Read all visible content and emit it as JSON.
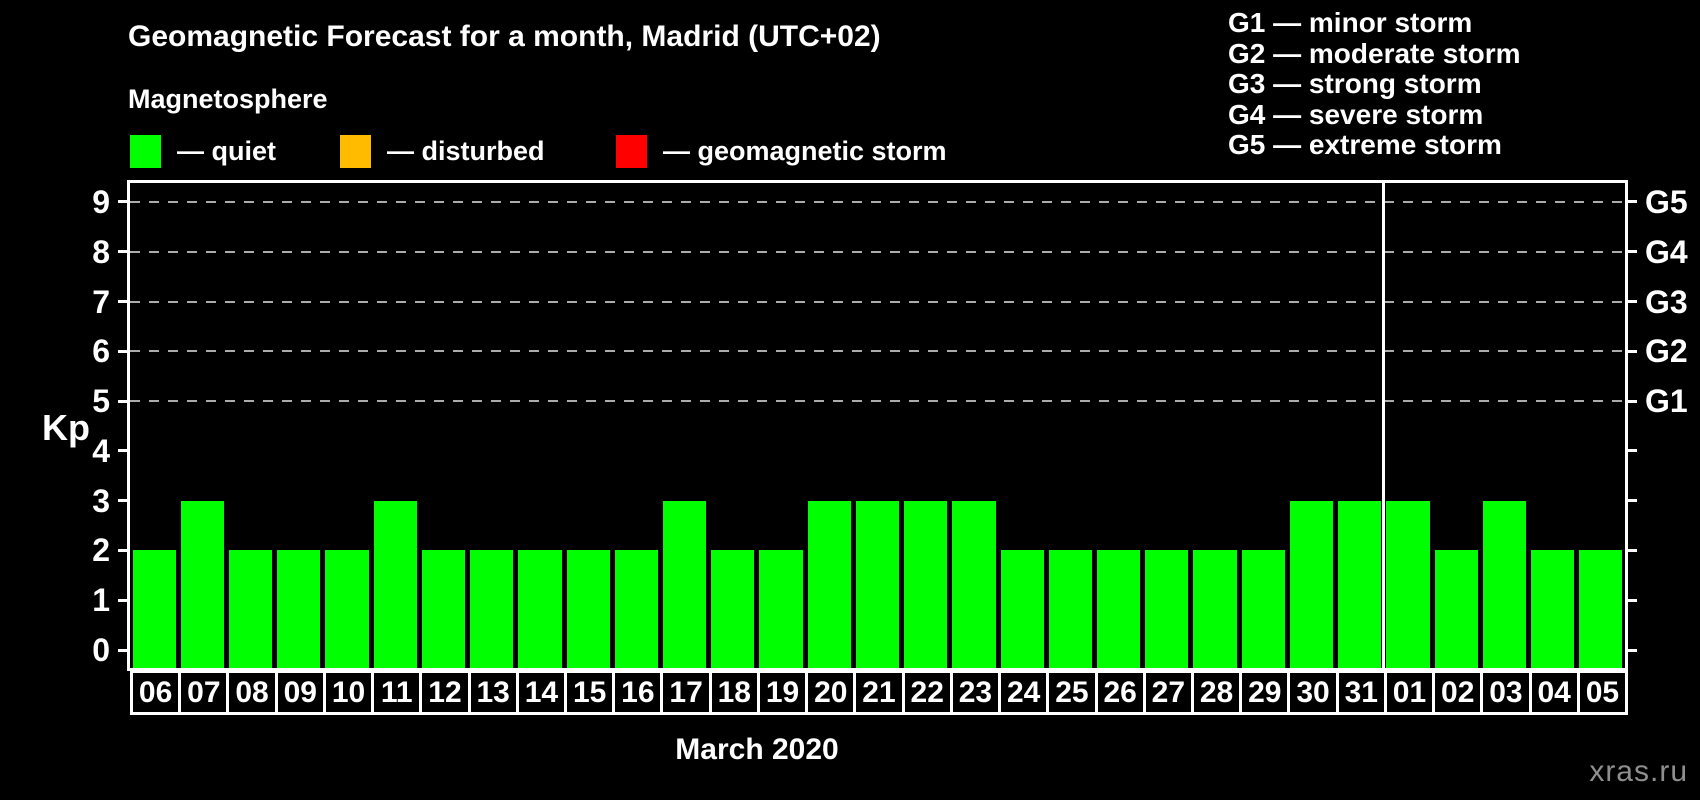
{
  "header": {
    "title": "Geomagnetic Forecast for a month, Madrid (UTC+02)",
    "subtitle": "Magnetosphere"
  },
  "legend": {
    "items": [
      {
        "name": "quiet",
        "label": "— quiet",
        "color": "#00ff00"
      },
      {
        "name": "disturbed",
        "label": "— disturbed",
        "color": "#ffbb00"
      },
      {
        "name": "geomagnetic-storm",
        "label": "— geomagnetic storm",
        "color": "#ff0000"
      }
    ]
  },
  "storm_scale": [
    "G1 — minor storm",
    "G2 — moderate storm",
    "G3 — strong storm",
    "G4 — severe storm",
    "G5 — extreme storm"
  ],
  "watermark": "xras.ru",
  "chart_data": {
    "type": "bar",
    "title": "Geomagnetic Forecast for a month, Madrid (UTC+02)",
    "ylabel": "Kp",
    "xlabel": "March 2020",
    "ylim": [
      0,
      9
    ],
    "yticks": [
      0,
      1,
      2,
      3,
      4,
      5,
      6,
      7,
      8,
      9
    ],
    "grid": "dashed horizontal lines at Kp 5-9 only",
    "legend_position": "top",
    "categories": [
      "06",
      "07",
      "08",
      "09",
      "10",
      "11",
      "12",
      "13",
      "14",
      "15",
      "16",
      "17",
      "18",
      "19",
      "20",
      "21",
      "22",
      "23",
      "24",
      "25",
      "26",
      "27",
      "28",
      "29",
      "30",
      "31",
      "01",
      "02",
      "03",
      "04",
      "05"
    ],
    "values": [
      2,
      3,
      2,
      2,
      2,
      3,
      2,
      2,
      2,
      2,
      2,
      3,
      2,
      2,
      3,
      3,
      3,
      3,
      2,
      2,
      2,
      2,
      2,
      2,
      3,
      3,
      3,
      2,
      3,
      2,
      2
    ],
    "bar_color": "#00ff00",
    "color_thresholds": {
      "disturbed_kp": 4,
      "storm_kp": 5
    },
    "right_axis": [
      {
        "kp": 5,
        "label": "G1"
      },
      {
        "kp": 6,
        "label": "G2"
      },
      {
        "kp": 7,
        "label": "G3"
      },
      {
        "kp": 8,
        "label": "G4"
      },
      {
        "kp": 9,
        "label": "G5"
      }
    ],
    "month_boundary_after_index": 25
  }
}
